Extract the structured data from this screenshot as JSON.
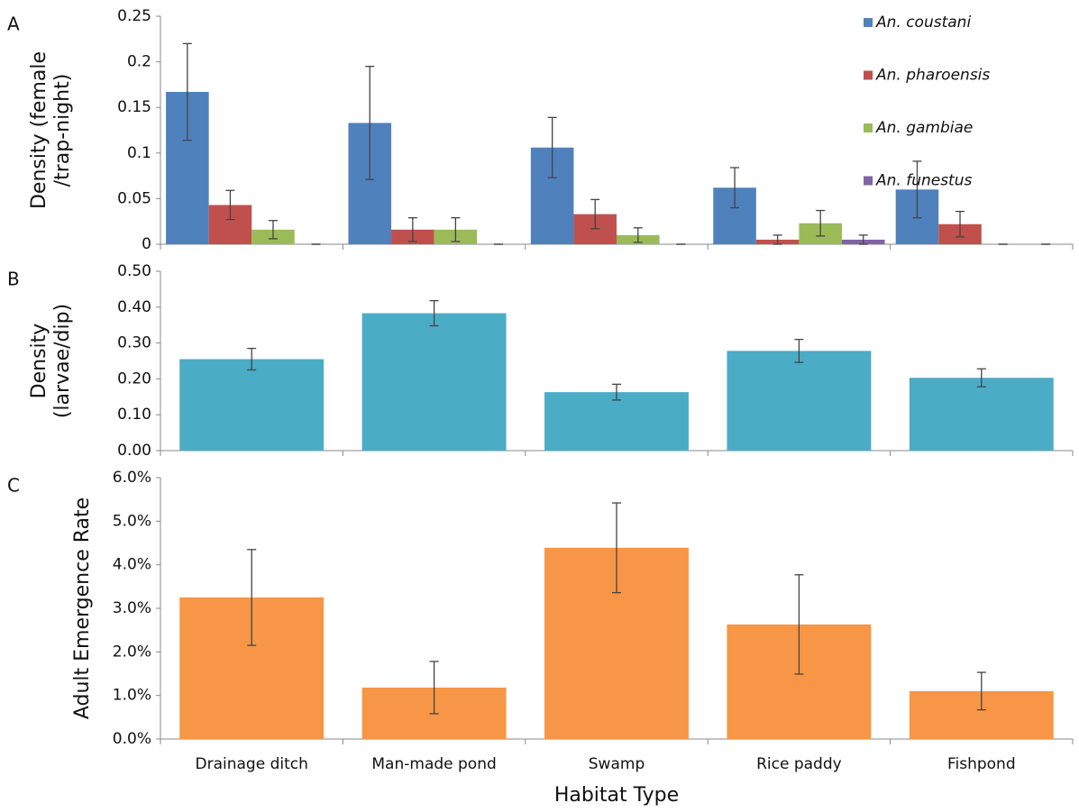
{
  "chart_data": [
    {
      "type": "bar",
      "panel_label": "A",
      "ylabel": [
        "Density (female",
        "/trap-night)"
      ],
      "ylim": [
        0,
        0.25
      ],
      "yticks": [
        0,
        0.05,
        0.1,
        0.15,
        0.2,
        0.25
      ],
      "legend": "top-right",
      "series": [
        {
          "name": "An. coustani",
          "color": "#4f81bd",
          "values": [
            0.167,
            0.133,
            0.106,
            0.062,
            0.06
          ],
          "errors": [
            0.053,
            0.062,
            0.033,
            0.022,
            0.031
          ]
        },
        {
          "name": "An. pharoensis",
          "color": "#c0504d",
          "values": [
            0.043,
            0.016,
            0.033,
            0.005,
            0.022
          ],
          "errors": [
            0.016,
            0.013,
            0.016,
            0.005,
            0.014
          ]
        },
        {
          "name": "An. gambiae",
          "color": "#9bbb59",
          "values": [
            0.016,
            0.016,
            0.01,
            0.023,
            0
          ],
          "errors": [
            0.01,
            0.013,
            0.008,
            0.014,
            0
          ]
        },
        {
          "name": "An. funestus",
          "color": "#8064a2",
          "values": [
            0,
            0,
            0,
            0.005,
            0
          ],
          "errors": [
            0,
            0,
            0,
            0.005,
            0
          ]
        }
      ]
    },
    {
      "type": "bar",
      "panel_label": "B",
      "ylabel": [
        "Density",
        "(larvae/dip)"
      ],
      "ylim": [
        0,
        0.5
      ],
      "yticks": [
        {
          "value": 0,
          "label": "0.00"
        },
        {
          "value": 0.1,
          "label": "0.10"
        },
        {
          "value": 0.2,
          "label": "0.20"
        },
        {
          "value": 0.3,
          "label": "0.30"
        },
        {
          "value": 0.4,
          "label": "0.40"
        },
        {
          "value": 0.5,
          "label": "0.50"
        }
      ],
      "series": [
        {
          "color": "#4bacc6",
          "values": [
            0.255,
            0.383,
            0.163,
            0.278,
            0.203
          ],
          "errors": [
            0.03,
            0.035,
            0.022,
            0.032,
            0.025
          ]
        }
      ]
    },
    {
      "type": "bar",
      "panel_label": "C",
      "ylabel": [
        "Adult Emergence Rate"
      ],
      "xlabel": "Habitat Type",
      "categories": [
        "Drainage ditch",
        "Man-made pond",
        "Swamp",
        "Rice paddy",
        "Fishpond"
      ],
      "ylim": [
        0,
        6
      ],
      "yticks": [
        {
          "value": 0,
          "label": "0.0%"
        },
        {
          "value": 1,
          "label": "1.0%"
        },
        {
          "value": 2,
          "label": "2.0%"
        },
        {
          "value": 3,
          "label": "3.0%"
        },
        {
          "value": 4,
          "label": "4.0%"
        },
        {
          "value": 5,
          "label": "5.0%"
        },
        {
          "value": 6,
          "label": "6.0%"
        }
      ],
      "series": [
        {
          "color": "#f79646",
          "values": [
            3.25,
            1.18,
            4.39,
            2.63,
            1.1
          ],
          "errors": [
            1.1,
            0.6,
            1.03,
            1.14,
            0.43
          ]
        }
      ]
    }
  ]
}
